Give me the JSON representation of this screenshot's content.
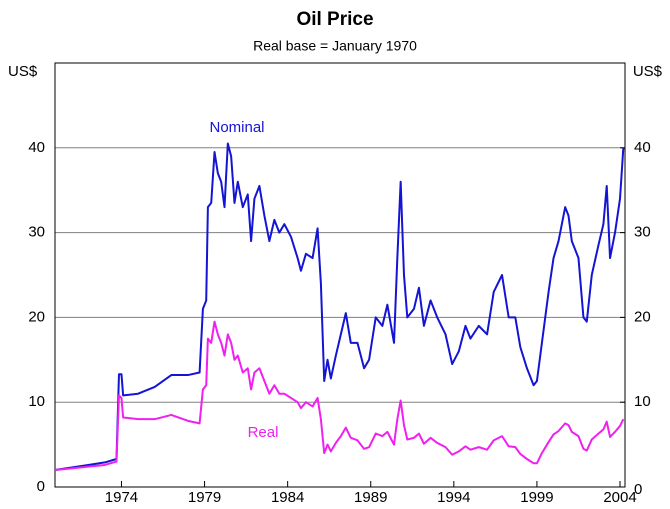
{
  "chart_data": {
    "type": "line",
    "title": "Oil Price",
    "subtitle": "Real base = January 1970",
    "y_label": "US$",
    "y2_label": "US$",
    "x": [
      1970.0,
      1971.0,
      1972.0,
      1973.0,
      1973.7,
      1973.85,
      1974.0,
      1974.1,
      1975.0,
      1976.0,
      1977.0,
      1978.0,
      1978.7,
      1978.9,
      1979.1,
      1979.2,
      1979.4,
      1979.6,
      1979.8,
      1980.0,
      1980.2,
      1980.4,
      1980.6,
      1980.8,
      1981.0,
      1981.3,
      1981.6,
      1981.8,
      1982.0,
      1982.3,
      1982.6,
      1982.9,
      1983.2,
      1983.5,
      1983.8,
      1984.2,
      1984.6,
      1984.8,
      1985.1,
      1985.5,
      1985.8,
      1986.0,
      1986.2,
      1986.4,
      1986.6,
      1986.9,
      1987.2,
      1987.5,
      1987.8,
      1988.2,
      1988.6,
      1988.9,
      1989.3,
      1989.7,
      1990.0,
      1990.4,
      1990.6,
      1990.8,
      1991.0,
      1991.2,
      1991.6,
      1991.9,
      1992.2,
      1992.6,
      1993.0,
      1993.5,
      1993.9,
      1994.3,
      1994.7,
      1995.0,
      1995.5,
      1996.0,
      1996.4,
      1996.9,
      1997.3,
      1997.7,
      1998.0,
      1998.4,
      1998.8,
      1999.0,
      1999.3,
      1999.7,
      2000.0,
      2000.3,
      2000.7,
      2000.9,
      2001.1,
      2001.5,
      2001.8,
      2002.0,
      2002.3,
      2002.7,
      2003.0,
      2003.2,
      2003.4,
      2003.7,
      2004.0,
      2004.2
    ],
    "series": [
      {
        "name": "Nominal",
        "color": "#1414d4",
        "values": [
          2.0,
          2.3,
          2.6,
          2.9,
          3.3,
          13.3,
          13.3,
          10.8,
          11.0,
          11.8,
          13.2,
          13.2,
          13.5,
          21,
          22,
          33,
          33.5,
          39.5,
          37,
          36,
          33,
          40.5,
          39,
          33.5,
          36,
          33,
          34.5,
          29,
          34,
          35.5,
          32,
          29,
          31.5,
          30,
          31,
          29.5,
          27,
          25.5,
          27.5,
          27,
          30.5,
          24,
          12.5,
          15,
          12.8,
          15.5,
          18,
          20.5,
          17,
          17,
          14,
          15,
          20,
          19,
          21.5,
          17,
          27,
          36,
          25,
          20,
          21,
          23.5,
          19,
          22,
          20,
          18,
          14.5,
          16,
          19,
          17.5,
          19,
          18,
          23,
          25,
          20,
          20,
          16.5,
          14,
          12,
          12.5,
          17,
          23,
          27,
          29,
          33,
          32,
          29,
          27,
          20,
          19.5,
          25,
          28.5,
          31,
          35.5,
          27,
          30,
          34,
          40
        ]
      },
      {
        "name": "Real",
        "color": "#f020f0",
        "values": [
          2.0,
          2.2,
          2.4,
          2.6,
          3.0,
          10.8,
          10.5,
          8.2,
          8.0,
          8.0,
          8.5,
          7.8,
          7.5,
          11.5,
          12,
          17.5,
          17,
          19.5,
          18,
          17,
          15.5,
          18,
          17,
          15,
          15.5,
          13.5,
          14,
          11.5,
          13.5,
          14,
          12.5,
          11,
          12,
          11,
          11,
          10.5,
          10,
          9.3,
          10,
          9.5,
          10.5,
          8,
          4,
          5,
          4.2,
          5.2,
          6,
          7,
          5.8,
          5.5,
          4.5,
          4.7,
          6.3,
          6,
          6.5,
          5,
          8,
          10.2,
          7.3,
          5.6,
          5.8,
          6.3,
          5.1,
          5.8,
          5.2,
          4.7,
          3.8,
          4.2,
          4.8,
          4.4,
          4.7,
          4.4,
          5.5,
          6,
          4.8,
          4.7,
          3.9,
          3.3,
          2.8,
          2.8,
          4,
          5.3,
          6.2,
          6.6,
          7.5,
          7.3,
          6.5,
          6,
          4.5,
          4.3,
          5.6,
          6.3,
          6.8,
          7.7,
          5.9,
          6.5,
          7.2,
          8
        ]
      }
    ],
    "xlim": [
      1970,
      2004.3
    ],
    "xticks": [
      1974,
      1979,
      1984,
      1989,
      1994,
      1999,
      2004
    ],
    "ylim": [
      0,
      50
    ],
    "yticks": [
      0,
      10,
      20,
      30,
      40
    ],
    "y2lim": [
      0,
      50
    ],
    "y2ticks": [
      0,
      10,
      20,
      30,
      40
    ],
    "grid": true
  }
}
